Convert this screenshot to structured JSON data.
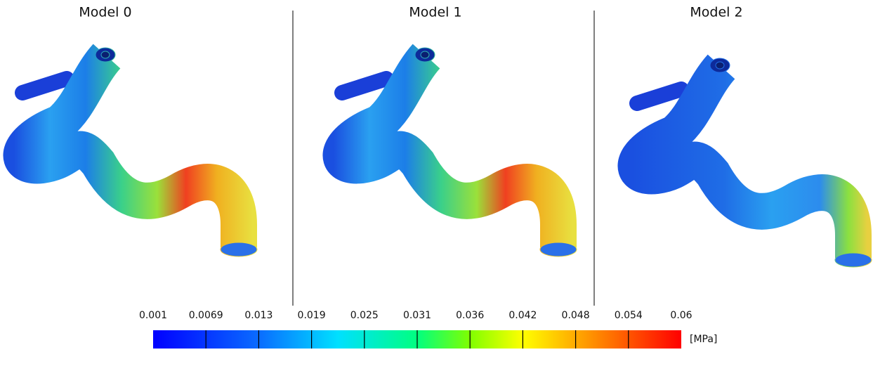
{
  "panels": [
    {
      "title": "Model 0"
    },
    {
      "title": "Model 1"
    },
    {
      "title": "Model 2"
    }
  ],
  "colorbar": {
    "ticks": [
      "0.001",
      "0.0069",
      "0.013",
      "0.019",
      "0.025",
      "0.031",
      "0.036",
      "0.042",
      "0.048",
      "0.054",
      "0.06"
    ],
    "unit": "[MPa]"
  }
}
